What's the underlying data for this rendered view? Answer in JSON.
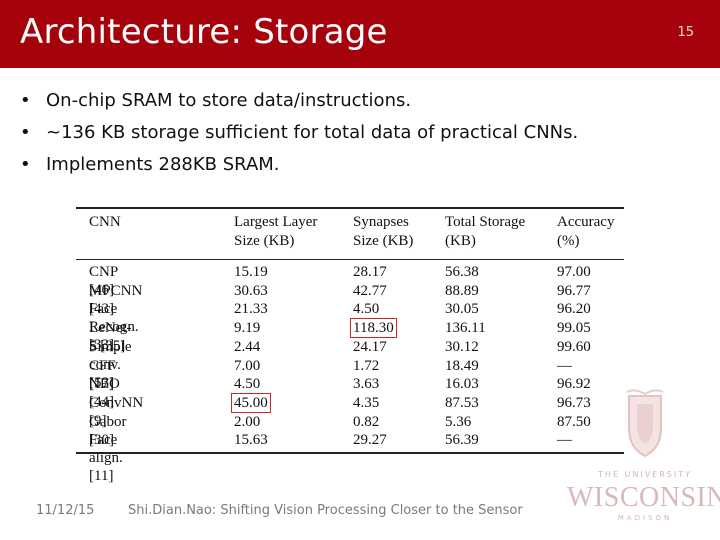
{
  "slide": {
    "title": "Architecture: Storage",
    "number": "15",
    "bullet_glyph": "•",
    "bullets": [
      "On-chip SRAM to store data/instructions.",
      "~136 KB storage sufficient for total data of practical CNNs.",
      "Implements 288KB SRAM."
    ]
  },
  "table": {
    "headers": [
      [
        "CNN",
        ""
      ],
      [
        "Largest Layer",
        "Size (KB)"
      ],
      [
        "Synapses",
        "Size (KB)"
      ],
      [
        "Total Storage",
        "(KB)"
      ],
      [
        "Accuracy",
        "(%)"
      ]
    ],
    "rows": [
      [
        "CNP [46]",
        "15.19",
        "28.17",
        "56.38",
        "97.00"
      ],
      [
        "MPCNN [43]",
        "30.63",
        "42.77",
        "88.89",
        "96.77"
      ],
      [
        "Face Recogn. [33]",
        "21.33",
        "4.50",
        "30.05",
        "96.20"
      ],
      [
        "LeNet-5 [35]",
        "9.19",
        "118.30",
        "136.11",
        "99.05"
      ],
      [
        "Simple conv. [53]",
        "2.44",
        "24.17",
        "30.12",
        "99.60"
      ],
      [
        "CFF [17]",
        "7.00",
        "1.72",
        "18.49",
        "—"
      ],
      [
        "NEO [44]",
        "4.50",
        "3.63",
        "16.03",
        "96.92"
      ],
      [
        "ConvNN [9]",
        "45.00",
        "4.35",
        "87.53",
        "96.73"
      ],
      [
        "Gabor [30]",
        "2.00",
        "0.82",
        "5.36",
        "87.50"
      ],
      [
        "Face align. [11]",
        "15.63",
        "29.27",
        "56.39",
        "—"
      ]
    ],
    "highlight_color": "#d32222"
  },
  "footer": {
    "date": "11/12/15",
    "text": "Shi.Dian.Nao: Shifting Vision Processing Closer to the Sensor"
  },
  "logo": {
    "line1": "THE UNIVERSITY",
    "word": "WISCONSIN",
    "line3": "MADISON"
  },
  "colors": {
    "title_bar": "#a6020c",
    "title_text": "#ffffff"
  }
}
